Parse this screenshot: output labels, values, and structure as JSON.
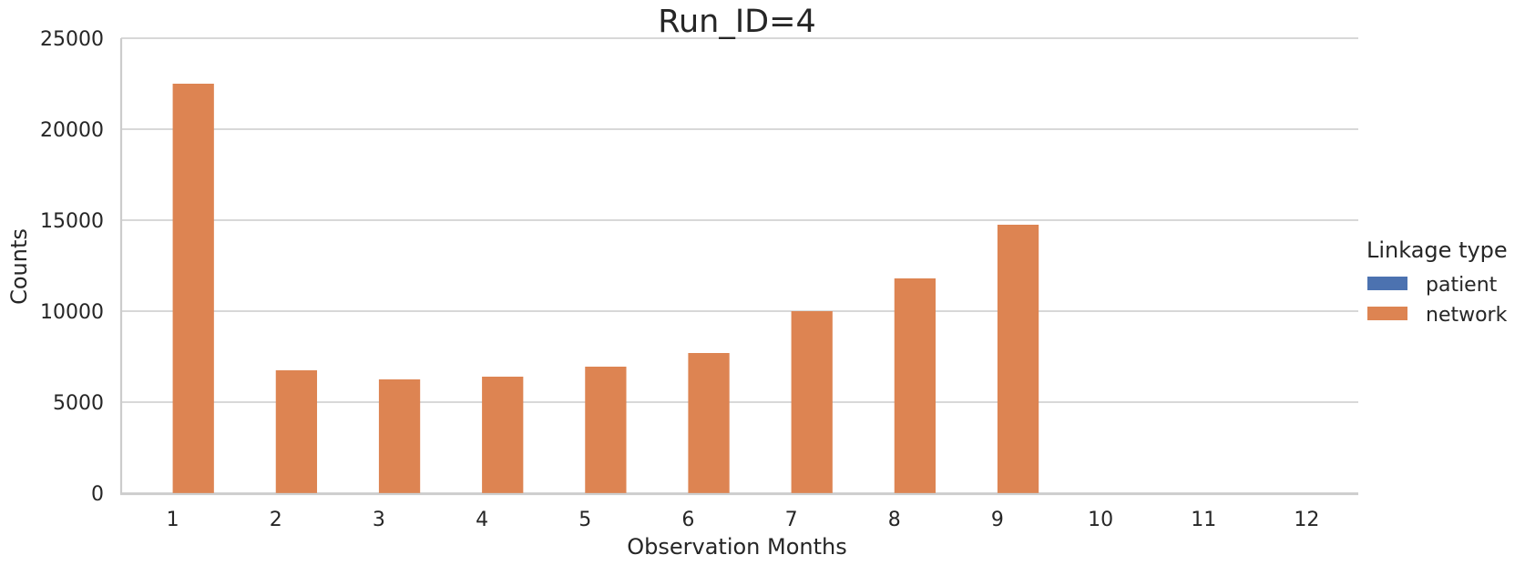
{
  "chart_data": {
    "type": "bar",
    "title": "Run_ID=4",
    "xlabel": "Observation Months",
    "ylabel": "Counts",
    "categories": [
      "1",
      "2",
      "3",
      "4",
      "5",
      "6",
      "7",
      "8",
      "9",
      "10",
      "11",
      "12"
    ],
    "ylim": [
      0,
      25000
    ],
    "yticks": [
      "0",
      "5000",
      "10000",
      "15000",
      "20000",
      "25000"
    ],
    "grid": "horizontal",
    "legend": {
      "title": "Linkage type",
      "placement": "right"
    },
    "series": [
      {
        "name": "patient",
        "color": "#4c72b0",
        "values": [
          0,
          0,
          0,
          0,
          0,
          0,
          0,
          0,
          0,
          0,
          0,
          0
        ]
      },
      {
        "name": "network",
        "color": "#dd8452",
        "values": [
          22500,
          6750,
          6250,
          6400,
          6950,
          7700,
          10000,
          11800,
          14750,
          0,
          0,
          0
        ]
      }
    ]
  }
}
